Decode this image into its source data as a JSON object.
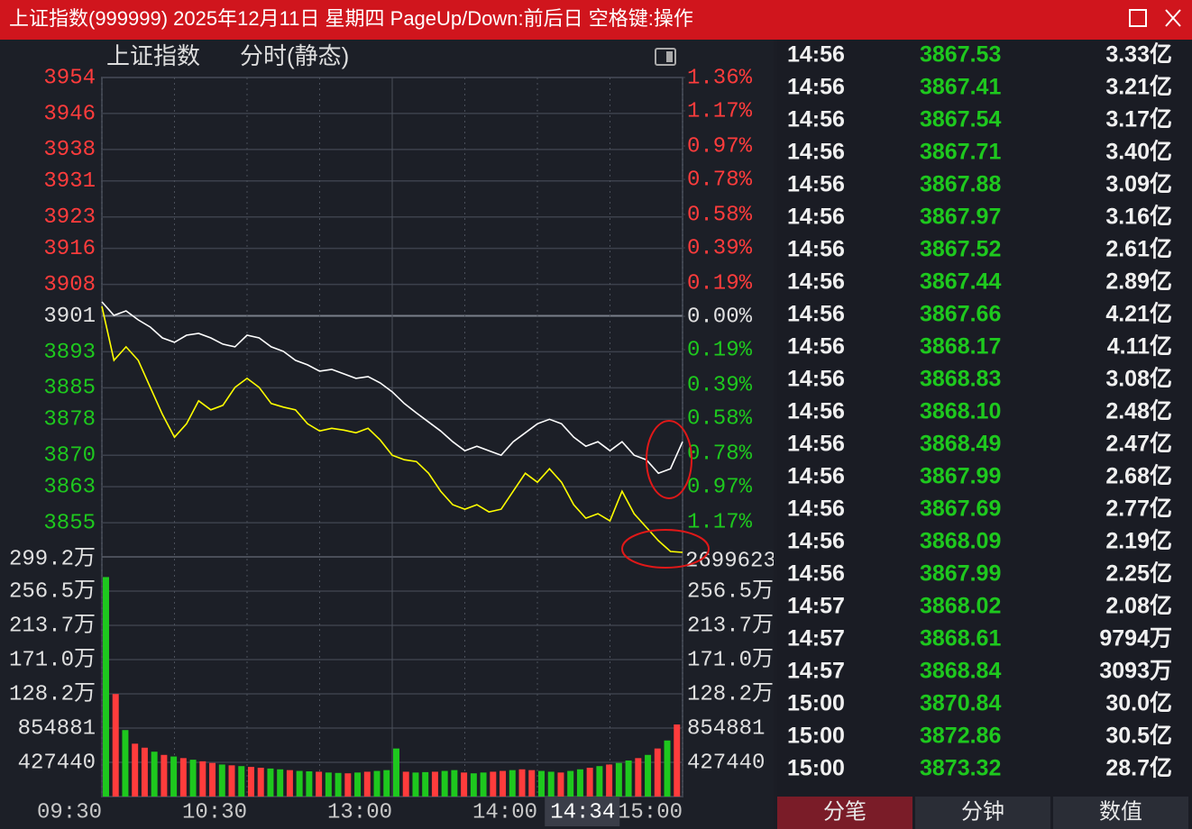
{
  "window": {
    "title": "上证指数(999999) 2025年12月11日 星期四 PageUp/Down:前后日 空格键:操作"
  },
  "chart_data": {
    "type": "line",
    "title": "上证指数",
    "subtitle": "分时(静态)",
    "up_color": "#ff3c3c",
    "down_color": "#1ec81e",
    "flat_color": "#e0e0e0",
    "x": [
      0,
      5,
      10,
      15,
      20,
      25,
      30,
      35,
      40,
      45,
      50,
      55,
      60,
      65,
      70,
      75,
      80,
      85,
      90,
      95,
      100,
      105,
      110,
      115,
      120,
      125,
      130,
      135,
      140,
      145,
      150,
      155,
      160,
      165,
      170,
      175,
      180,
      185,
      190,
      195,
      200,
      205,
      210,
      215,
      220,
      225,
      230,
      235,
      240
    ],
    "xlim": [
      0,
      240
    ],
    "xticks": [
      {
        "value": 0,
        "label": "09:30"
      },
      {
        "value": 60,
        "label": "10:30"
      },
      {
        "value": 120,
        "label": "13:00"
      },
      {
        "value": 180,
        "label": "14:00"
      },
      {
        "value": 240,
        "label": "15:00"
      }
    ],
    "x_minor_ticks": [
      30,
      90,
      150,
      210
    ],
    "cursor": {
      "value": 214,
      "label": "14:34"
    },
    "series": [
      {
        "color": "#ffffff",
        "values": [
          3904.1,
          3901.1,
          3902.1,
          3900.1,
          3898.5,
          3896.1,
          3895.1,
          3896.7,
          3897.1,
          3896.1,
          3894.7,
          3894.1,
          3896.7,
          3896.1,
          3894.1,
          3893.1,
          3891.1,
          3890.1,
          3888.7,
          3889.1,
          3888.1,
          3887.1,
          3887.5,
          3886.1,
          3884.1,
          3881.5,
          3879.4,
          3877.4,
          3875.4,
          3873.0,
          3871.0,
          3872.0,
          3871.0,
          3870.0,
          3873.0,
          3875.0,
          3877.0,
          3878.0,
          3877.0,
          3874.0,
          3872.0,
          3873.0,
          3871.0,
          3873.0,
          3870.0,
          3869.0,
          3866.0,
          3867.0,
          3873.0
        ]
      },
      {
        "color": "#ffff00",
        "values": [
          3903.1,
          3891.1,
          3894.1,
          3891.1,
          3885.1,
          3879.1,
          3874.0,
          3877.0,
          3882.1,
          3880.1,
          3881.1,
          3885.1,
          3887.1,
          3885.1,
          3881.5,
          3880.7,
          3880.1,
          3877.0,
          3875.4,
          3876.0,
          3875.6,
          3875.0,
          3876.0,
          3873.4,
          3870.0,
          3869.0,
          3868.6,
          3866.0,
          3862.0,
          3859.0,
          3858.0,
          3859.0,
          3857.4,
          3858.0,
          3862.0,
          3866.0,
          3864.0,
          3867.0,
          3864.0,
          3859.0,
          3856.0,
          3857.0,
          3855.4,
          3862.0,
          3857.0,
          3854.0,
          3851.0,
          3848.6,
          3848.4
        ]
      }
    ],
    "ylim": [
      3847.4,
      3954
    ],
    "yticks": [
      3954,
      3946,
      3938,
      3931,
      3923,
      3916,
      3908,
      3901,
      3893,
      3885,
      3878,
      3870,
      3863,
      3855
    ],
    "y2lim": [
      -1.37,
      1.36
    ],
    "y2ticks": [
      {
        "value": 1.36,
        "label": "1.36%"
      },
      {
        "value": 1.17,
        "label": "1.17%"
      },
      {
        "value": 0.97,
        "label": "0.97%"
      },
      {
        "value": 0.78,
        "label": "0.78%"
      },
      {
        "value": 0.58,
        "label": "0.58%"
      },
      {
        "value": 0.39,
        "label": "0.39%"
      },
      {
        "value": 0.19,
        "label": "0.19%"
      },
      {
        "value": 0,
        "label": "0.00%"
      },
      {
        "value": -0.19,
        "label": "0.19%"
      },
      {
        "value": -0.39,
        "label": "0.39%"
      },
      {
        "value": -0.58,
        "label": "0.58%"
      },
      {
        "value": -0.78,
        "label": "0.78%"
      },
      {
        "value": -0.97,
        "label": "0.97%"
      },
      {
        "value": -1.17,
        "label": "1.17%"
      }
    ],
    "grid": true,
    "volume": {
      "x": [
        0,
        4,
        8,
        12,
        16,
        20,
        24,
        28,
        32,
        36,
        40,
        44,
        48,
        52,
        56,
        60,
        64,
        68,
        72,
        76,
        80,
        84,
        88,
        92,
        96,
        100,
        104,
        108,
        112,
        116,
        120,
        124,
        128,
        132,
        136,
        140,
        144,
        148,
        152,
        156,
        160,
        164,
        168,
        172,
        176,
        180,
        184,
        188,
        192,
        196,
        200,
        204,
        208,
        212,
        216,
        220,
        224,
        228,
        232,
        236
      ],
      "values": [
        2740000,
        1280000,
        830000,
        660000,
        610000,
        560000,
        520000,
        500000,
        480000,
        460000,
        440000,
        420000,
        400000,
        390000,
        380000,
        370000,
        360000,
        350000,
        340000,
        330000,
        320000,
        315000,
        310000,
        300000,
        295000,
        290000,
        300000,
        310000,
        320000,
        330000,
        600000,
        310000,
        300000,
        305000,
        310000,
        320000,
        330000,
        300000,
        290000,
        300000,
        310000,
        320000,
        330000,
        340000,
        330000,
        320000,
        310000,
        300000,
        320000,
        340000,
        360000,
        380000,
        400000,
        420000,
        450000,
        480000,
        520000,
        600000,
        700000,
        900000
      ],
      "colors": [
        "#1ec81e",
        "#ff3c3c",
        "#1ec81e",
        "#ff3c3c",
        "#ff3c3c",
        "#1ec81e",
        "#ff3c3c",
        "#1ec81e",
        "#ff3c3c",
        "#1ec81e",
        "#ff3c3c",
        "#ff3c3c",
        "#1ec81e",
        "#ff3c3c",
        "#1ec81e",
        "#ff3c3c",
        "#ff3c3c",
        "#1ec81e",
        "#1ec81e",
        "#ff3c3c",
        "#1ec81e",
        "#1ec81e",
        "#ff3c3c",
        "#1ec81e",
        "#1ec81e",
        "#ff3c3c",
        "#1ec81e",
        "#ff3c3c",
        "#1ec81e",
        "#1ec81e",
        "#1ec81e",
        "#ff3c3c",
        "#1ec81e",
        "#1ec81e",
        "#ff3c3c",
        "#1ec81e",
        "#1ec81e",
        "#ff3c3c",
        "#1ec81e",
        "#1ec81e",
        "#ff3c3c",
        "#ff3c3c",
        "#1ec81e",
        "#ff3c3c",
        "#ff3c3c",
        "#1ec81e",
        "#1ec81e",
        "#ff3c3c",
        "#1ec81e",
        "#1ec81e",
        "#ff3c3c",
        "#1ec81e",
        "#ff3c3c",
        "#1ec81e",
        "#1ec81e",
        "#ff3c3c",
        "#1ec81e",
        "#ff3c3c",
        "#1ec81e",
        "#ff3c3c"
      ],
      "ylim": [
        0,
        2992080
      ],
      "yticks": [
        {
          "value": 2992080,
          "label": "299.2万"
        },
        {
          "value": 2564640,
          "label": "256.5万"
        },
        {
          "value": 2137200,
          "label": "213.7万"
        },
        {
          "value": 1709760,
          "label": "171.0万"
        },
        {
          "value": 1282320,
          "label": "128.2万"
        },
        854881,
        427440
      ],
      "readout": "2699623"
    }
  },
  "ticks_table": {
    "rows": [
      [
        "14:56",
        "3867.53",
        "3.33亿"
      ],
      [
        "14:56",
        "3867.41",
        "3.21亿"
      ],
      [
        "14:56",
        "3867.54",
        "3.17亿"
      ],
      [
        "14:56",
        "3867.71",
        "3.40亿"
      ],
      [
        "14:56",
        "3867.88",
        "3.09亿"
      ],
      [
        "14:56",
        "3867.97",
        "3.16亿"
      ],
      [
        "14:56",
        "3867.52",
        "2.61亿"
      ],
      [
        "14:56",
        "3867.44",
        "2.89亿"
      ],
      [
        "14:56",
        "3867.66",
        "4.21亿"
      ],
      [
        "14:56",
        "3868.17",
        "4.11亿"
      ],
      [
        "14:56",
        "3868.83",
        "3.08亿"
      ],
      [
        "14:56",
        "3868.10",
        "2.48亿"
      ],
      [
        "14:56",
        "3868.49",
        "2.47亿"
      ],
      [
        "14:56",
        "3867.99",
        "2.68亿"
      ],
      [
        "14:56",
        "3867.69",
        "2.77亿"
      ],
      [
        "14:56",
        "3868.09",
        "2.19亿"
      ],
      [
        "14:56",
        "3867.99",
        "2.25亿"
      ],
      [
        "14:57",
        "3868.02",
        "2.08亿"
      ],
      [
        "14:57",
        "3868.61",
        "9794万"
      ],
      [
        "14:57",
        "3868.84",
        "3093万"
      ],
      [
        "15:00",
        "3870.84",
        "30.0亿"
      ],
      [
        "15:00",
        "3872.86",
        "30.5亿"
      ],
      [
        "15:00",
        "3873.32",
        "28.7亿"
      ]
    ]
  },
  "tabs": [
    "分笔",
    "分钟",
    "数值"
  ]
}
